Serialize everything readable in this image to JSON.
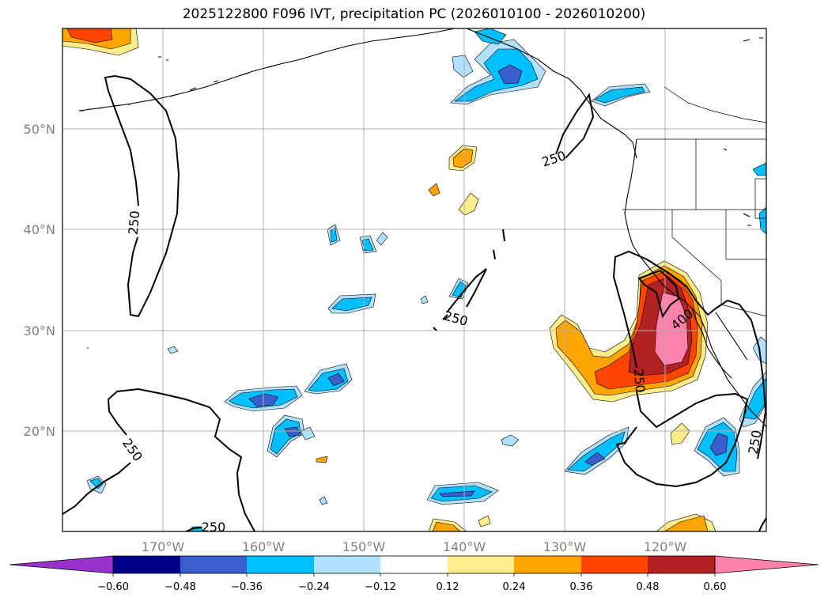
{
  "title": "2025122800 F096 IVT, precipitation PC (2026010100 - 2026010200)",
  "map": {
    "lon_range": [
      -180,
      -110
    ],
    "lat_range": [
      10,
      60
    ],
    "lon_ticks": [
      {
        "value": -170,
        "label": "170°W"
      },
      {
        "value": -160,
        "label": "160°W"
      },
      {
        "value": -150,
        "label": "150°W"
      },
      {
        "value": -140,
        "label": "140°W"
      },
      {
        "value": -130,
        "label": "130°W"
      },
      {
        "value": -120,
        "label": "120°W"
      }
    ],
    "lat_ticks": [
      {
        "value": 20,
        "label": "20°N"
      },
      {
        "value": 30,
        "label": "30°N"
      },
      {
        "value": 40,
        "label": "40°N"
      },
      {
        "value": 50,
        "label": "50°N"
      }
    ],
    "grid": true,
    "ivt_contour_labels": [
      "250",
      "250",
      "250",
      "250",
      "250",
      "250",
      "400",
      "250"
    ]
  },
  "colorbar": {
    "extend": "both",
    "colors": [
      "#9932cc",
      "#00008b",
      "#3a5fcd",
      "#00bfff",
      "#b0e2ff",
      "#ffffff",
      "#ffec8b",
      "#ffa500",
      "#ff4500",
      "#b22222",
      "#ff82ab"
    ],
    "tick_labels": [
      "−0.60",
      "−0.48",
      "−0.36",
      "−0.24",
      "−0.12",
      "0.12",
      "0.24",
      "0.36",
      "0.48",
      "0.60"
    ]
  }
}
